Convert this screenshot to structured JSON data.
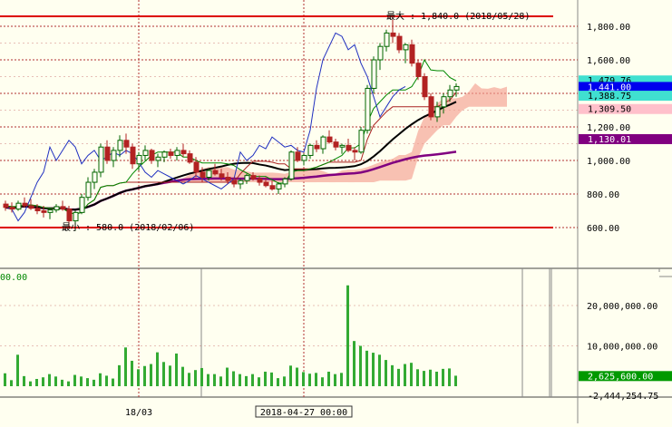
{
  "colors": {
    "background": "#fffff0",
    "grid": "#b03030",
    "price_line": "#dd0000",
    "candle_up": "#006400",
    "candle_down": "#b22222",
    "volume": "#33aa33",
    "ichimoku_cloud": "#f4a090",
    "ichimoku_cloud_bear": "#6070e0",
    "chikou": "#2030c0",
    "sma_short": "#000000",
    "sma_long": "#800080",
    "tenkan": "#008800",
    "kijun": "#aa2222"
  },
  "chart_data": [
    {
      "type": "candlestick",
      "title": "",
      "y_ticks": [
        "1,800.00",
        "1,600.00",
        "1,400.00",
        "1,200.00",
        "1,000.00",
        "800.00",
        "600.00"
      ],
      "y_tick_values": [
        1800,
        1600,
        1400,
        1200,
        1000,
        800,
        600
      ],
      "ylim": [
        520,
        1880
      ],
      "max_label": "最大 : 1,840.0 (2018/05/28)",
      "min_label": "最小 : 580.0 (2018/02/06)",
      "max_value": 1840,
      "min_value": 580,
      "price_badges": [
        {
          "label": "1,479.76",
          "value": 1479.76,
          "bg": "#40e0d0",
          "fg": "#000000"
        },
        {
          "label": "1,441.00",
          "value": 1441,
          "bg": "#0000ee",
          "fg": "#ffffff"
        },
        {
          "label": "1,388.75",
          "value": 1388.75,
          "bg": "#40e0d0",
          "fg": "#000000"
        },
        {
          "label": "1,309.50",
          "value": 1309.5,
          "bg": "#ffc0cb",
          "fg": "#000000"
        },
        {
          "label": "1,130.01",
          "value": 1130.01,
          "bg": "#800080",
          "fg": "#ffffff"
        }
      ],
      "candles": [
        [
          740,
          760,
          700,
          720
        ],
        [
          720,
          750,
          690,
          710
        ],
        [
          710,
          760,
          700,
          745
        ],
        [
          745,
          780,
          720,
          730
        ],
        [
          730,
          770,
          705,
          715
        ],
        [
          715,
          740,
          680,
          700
        ],
        [
          700,
          730,
          660,
          690
        ],
        [
          690,
          720,
          650,
          705
        ],
        [
          705,
          740,
          690,
          725
        ],
        [
          725,
          760,
          700,
          710
        ],
        [
          710,
          730,
          600,
          640
        ],
        [
          640,
          700,
          580,
          690
        ],
        [
          690,
          800,
          680,
          780
        ],
        [
          780,
          900,
          760,
          870
        ],
        [
          870,
          950,
          830,
          930
        ],
        [
          930,
          1100,
          900,
          1080
        ],
        [
          1080,
          1120,
          980,
          1000
        ],
        [
          1000,
          1080,
          960,
          1060
        ],
        [
          1060,
          1150,
          1020,
          1120
        ],
        [
          1120,
          1160,
          1040,
          1080
        ],
        [
          1080,
          1100,
          950,
          980
        ],
        [
          980,
          1050,
          940,
          1030
        ],
        [
          1030,
          1090,
          1000,
          1060
        ],
        [
          1060,
          1070,
          980,
          1000
        ],
        [
          1000,
          1040,
          960,
          1020
        ],
        [
          1020,
          1060,
          990,
          1050
        ],
        [
          1050,
          1070,
          1010,
          1030
        ],
        [
          1030,
          1080,
          1000,
          1060
        ],
        [
          1060,
          1100,
          1020,
          1040
        ],
        [
          1040,
          1060,
          980,
          990
        ],
        [
          990,
          1020,
          900,
          930
        ],
        [
          930,
          960,
          870,
          900
        ],
        [
          900,
          950,
          880,
          940
        ],
        [
          940,
          980,
          910,
          920
        ],
        [
          920,
          950,
          880,
          900
        ],
        [
          900,
          930,
          860,
          880
        ],
        [
          880,
          900,
          840,
          860
        ],
        [
          860,
          890,
          830,
          880
        ],
        [
          880,
          920,
          860,
          910
        ],
        [
          910,
          930,
          880,
          890
        ],
        [
          890,
          910,
          850,
          870
        ],
        [
          870,
          900,
          840,
          850
        ],
        [
          850,
          880,
          820,
          830
        ],
        [
          830,
          870,
          800,
          860
        ],
        [
          860,
          900,
          840,
          890
        ],
        [
          890,
          1060,
          880,
          1050
        ],
        [
          1050,
          1080,
          990,
          1000
        ],
        [
          1000,
          1040,
          970,
          1030
        ],
        [
          1030,
          1100,
          1010,
          1090
        ],
        [
          1090,
          1120,
          1050,
          1070
        ],
        [
          1070,
          1150,
          1040,
          1140
        ],
        [
          1140,
          1180,
          1100,
          1110
        ],
        [
          1110,
          1130,
          1060,
          1080
        ],
        [
          1080,
          1100,
          1040,
          1090
        ],
        [
          1090,
          1130,
          1050,
          1060
        ],
        [
          1060,
          1080,
          1000,
          1050
        ],
        [
          1050,
          1200,
          1040,
          1180
        ],
        [
          1180,
          1450,
          1160,
          1430
        ],
        [
          1430,
          1620,
          1400,
          1600
        ],
        [
          1600,
          1700,
          1540,
          1680
        ],
        [
          1680,
          1780,
          1650,
          1760
        ],
        [
          1760,
          1840,
          1700,
          1740
        ],
        [
          1740,
          1760,
          1640,
          1660
        ],
        [
          1660,
          1700,
          1580,
          1690
        ],
        [
          1690,
          1720,
          1560,
          1580
        ],
        [
          1580,
          1600,
          1480,
          1500
        ],
        [
          1500,
          1520,
          1360,
          1380
        ],
        [
          1380,
          1400,
          1240,
          1260
        ],
        [
          1260,
          1350,
          1230,
          1320
        ],
        [
          1320,
          1400,
          1280,
          1380
        ],
        [
          1380,
          1450,
          1350,
          1420
        ],
        [
          1420,
          1460,
          1380,
          1441
        ]
      ],
      "volume_axis": {
        "ticks": [
          "20,000,000.00",
          "10,000,000.00"
        ],
        "tick_values": [
          20000000,
          10000000
        ],
        "ylim": [
          -3000000,
          30000000
        ],
        "current_label": "2,625,600.00",
        "current_value": 2625600,
        "lower_label": "-2,444,254.75",
        "left_label": "00.00"
      },
      "volume": [
        3.2,
        1.5,
        7.8,
        2.5,
        1.2,
        1.8,
        2.2,
        3.0,
        2.4,
        1.6,
        1.2,
        2.8,
        2.4,
        2.0,
        1.6,
        3.2,
        2.6,
        1.9,
        5.2,
        9.6,
        6.3,
        4.2,
        5.0,
        5.5,
        8.4,
        6.0,
        5.1,
        8.1,
        4.8,
        3.3,
        4.0,
        4.5,
        3.0,
        3.0,
        2.4,
        4.6,
        3.7,
        3.0,
        2.5,
        3.0,
        2.2,
        3.6,
        3.4,
        2.0,
        2.4,
        5.1,
        4.6,
        3.5,
        3.1,
        3.3,
        2.2,
        3.6,
        3.0,
        3.3,
        25.0,
        11.2,
        10.0,
        8.8,
        8.3,
        7.8,
        6.5,
        5.2,
        4.3,
        5.5,
        5.8,
        4.2,
        3.8,
        4.1,
        3.6,
        4.3,
        4.4,
        2.6
      ],
      "x_labels": [
        {
          "label": "18/03",
          "index": 21
        },
        {
          "label": "2018-04-27  00:00",
          "index": 47
        }
      ]
    }
  ]
}
